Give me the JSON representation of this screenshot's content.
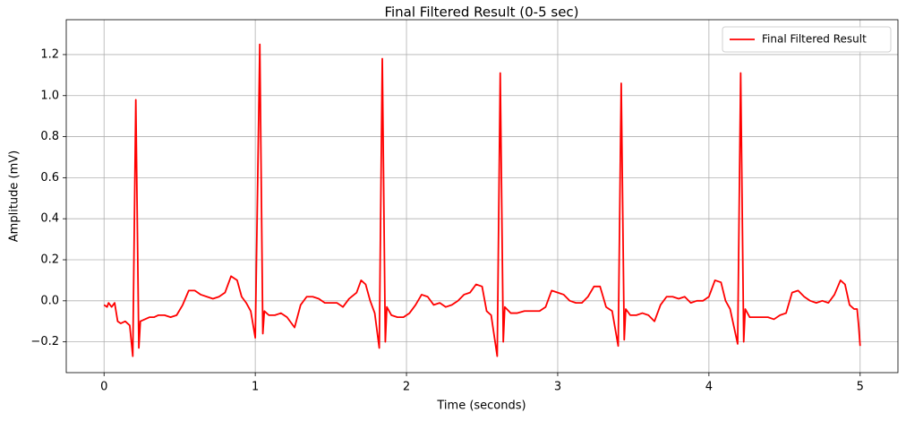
{
  "chart_data": {
    "type": "line",
    "title": "Final Filtered Result (0-5 sec)",
    "x_label": "Time (seconds)",
    "y_label": "Amplitude (mV)",
    "x": [
      0,
      0.02,
      0.03,
      0.05,
      0.07,
      0.09,
      0.11,
      0.14,
      0.17,
      0.19,
      0.21,
      0.23,
      0.24,
      0.27,
      0.3,
      0.33,
      0.36,
      0.4,
      0.44,
      0.48,
      0.52,
      0.56,
      0.6,
      0.64,
      0.68,
      0.72,
      0.76,
      0.8,
      0.84,
      0.88,
      0.91,
      0.94,
      0.97,
      1.0,
      1.03,
      1.05,
      1.06,
      1.09,
      1.13,
      1.17,
      1.21,
      1.26,
      1.3,
      1.34,
      1.38,
      1.42,
      1.46,
      1.5,
      1.54,
      1.58,
      1.62,
      1.67,
      1.7,
      1.73,
      1.76,
      1.79,
      1.82,
      1.84,
      1.86,
      1.87,
      1.9,
      1.94,
      1.98,
      2.02,
      2.06,
      2.1,
      2.14,
      2.18,
      2.22,
      2.26,
      2.3,
      2.34,
      2.38,
      2.42,
      2.46,
      2.5,
      2.53,
      2.56,
      2.6,
      2.62,
      2.64,
      2.65,
      2.69,
      2.73,
      2.78,
      2.83,
      2.88,
      2.92,
      2.96,
      3.0,
      3.04,
      3.08,
      3.12,
      3.16,
      3.2,
      3.24,
      3.28,
      3.32,
      3.36,
      3.4,
      3.42,
      3.44,
      3.45,
      3.48,
      3.52,
      3.56,
      3.6,
      3.64,
      3.68,
      3.72,
      3.76,
      3.8,
      3.84,
      3.88,
      3.92,
      3.96,
      4.0,
      4.04,
      4.08,
      4.11,
      4.14,
      4.19,
      4.21,
      4.23,
      4.24,
      4.27,
      4.31,
      4.35,
      4.39,
      4.43,
      4.47,
      4.51,
      4.55,
      4.59,
      4.63,
      4.67,
      4.71,
      4.75,
      4.79,
      4.83,
      4.87,
      4.9,
      4.93,
      4.96,
      4.98,
      4.99,
      5.0
    ],
    "series": [
      {
        "name": "Final Filtered Result",
        "color": "#ff0000",
        "values": [
          -0.02,
          -0.03,
          -0.01,
          -0.03,
          -0.01,
          -0.1,
          -0.11,
          -0.1,
          -0.12,
          -0.27,
          0.98,
          -0.23,
          -0.1,
          -0.09,
          -0.08,
          -0.08,
          -0.07,
          -0.07,
          -0.08,
          -0.07,
          -0.02,
          0.05,
          0.05,
          0.03,
          0.02,
          0.01,
          0.02,
          0.04,
          0.12,
          0.1,
          0.02,
          -0.01,
          -0.05,
          -0.18,
          1.25,
          -0.16,
          -0.05,
          -0.07,
          -0.07,
          -0.06,
          -0.08,
          -0.13,
          -0.02,
          0.02,
          0.02,
          0.01,
          -0.01,
          -0.01,
          -0.01,
          -0.03,
          0.01,
          0.04,
          0.1,
          0.08,
          0,
          -0.06,
          -0.23,
          1.18,
          -0.2,
          -0.03,
          -0.07,
          -0.08,
          -0.08,
          -0.06,
          -0.02,
          0.03,
          0.02,
          -0.02,
          -0.01,
          -0.03,
          -0.02,
          0,
          0.03,
          0.04,
          0.08,
          0.07,
          -0.05,
          -0.07,
          -0.27,
          1.11,
          -0.2,
          -0.03,
          -0.06,
          -0.06,
          -0.05,
          -0.05,
          -0.05,
          -0.03,
          0.05,
          0.04,
          0.03,
          0,
          -0.01,
          -0.01,
          0.02,
          0.07,
          0.07,
          -0.03,
          -0.05,
          -0.22,
          1.06,
          -0.19,
          -0.04,
          -0.07,
          -0.07,
          -0.06,
          -0.07,
          -0.1,
          -0.02,
          0.02,
          0.02,
          0.01,
          0.02,
          -0.01,
          0,
          0,
          0.02,
          0.1,
          0.09,
          0,
          -0.04,
          -0.21,
          1.11,
          -0.2,
          -0.04,
          -0.08,
          -0.08,
          -0.08,
          -0.08,
          -0.09,
          -0.07,
          -0.06,
          0.04,
          0.05,
          0.02,
          0,
          -0.01,
          0,
          -0.01,
          0.03,
          0.1,
          0.08,
          -0.02,
          -0.04,
          -0.04,
          -0.12,
          -0.22
        ]
      }
    ],
    "xlim": [
      -0.25,
      5.25
    ],
    "xticks": [
      0,
      1,
      2,
      3,
      4,
      5
    ],
    "ylim": [
      -0.35,
      1.37
    ],
    "yticks": [
      {
        "value": -0.2,
        "label": "−0.2"
      },
      {
        "value": 0,
        "label": "0.0"
      },
      {
        "value": 0.2,
        "label": "0.2"
      },
      {
        "value": 0.4,
        "label": "0.4"
      },
      {
        "value": 0.6,
        "label": "0.6"
      },
      {
        "value": 0.8,
        "label": "0.8"
      },
      {
        "value": 1.0,
        "label": "1.0"
      },
      {
        "value": 1.2,
        "label": "1.2"
      }
    ],
    "grid": true,
    "legend": "upper-right"
  }
}
